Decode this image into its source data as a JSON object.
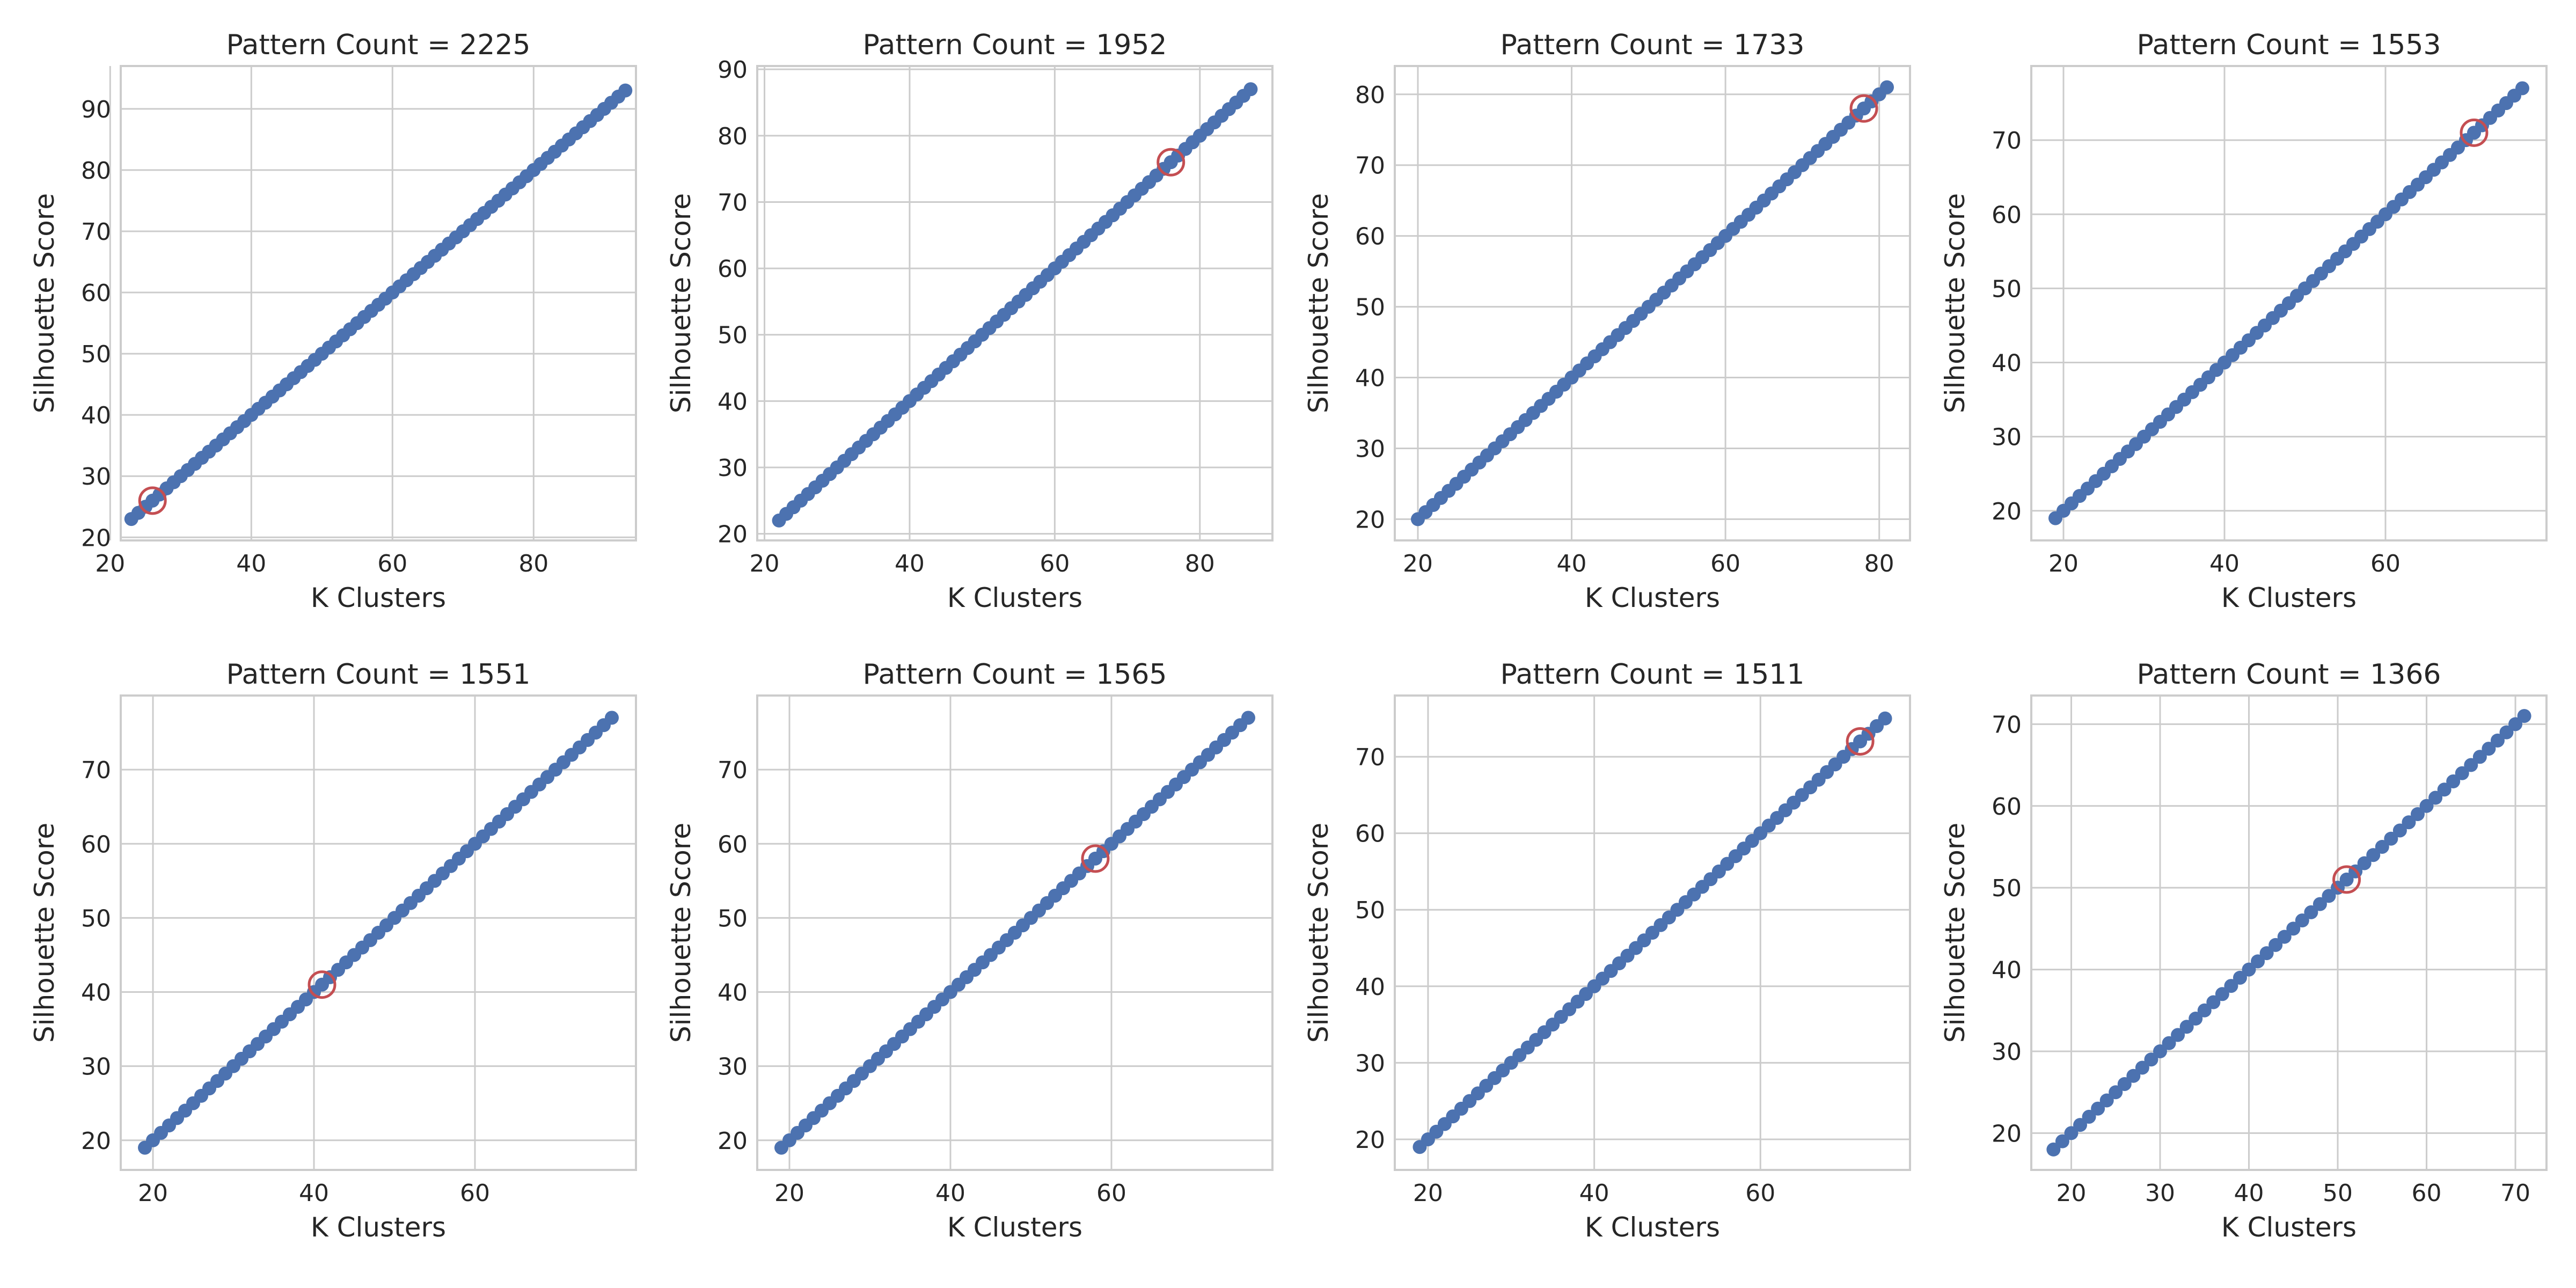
{
  "colors": {
    "series": "#4c72b0",
    "highlight": "#c44e52",
    "grid": "#cccccc",
    "text": "#262626"
  },
  "chart_data": [
    {
      "type": "scatter",
      "title": "Pattern Count = 2225",
      "xlabel": "K Clusters",
      "ylabel": "Silhouette Score",
      "x_start": 23,
      "x_end": 93,
      "xlim": [
        21.5,
        94.5
      ],
      "ylim": [
        19.5,
        97
      ],
      "grid": true,
      "xticks": [
        20,
        40,
        60,
        80
      ],
      "yticks": [
        20,
        30,
        40,
        50,
        60,
        70,
        80,
        90
      ],
      "highlight": {
        "x": 26,
        "y": 26
      }
    },
    {
      "type": "scatter",
      "title": "Pattern Count = 1952",
      "xlabel": "K Clusters",
      "ylabel": "Silhouette Score",
      "x_start": 22,
      "x_end": 87,
      "xlim": [
        19,
        90
      ],
      "ylim": [
        19,
        90.5
      ],
      "grid": true,
      "xticks": [
        20,
        40,
        60,
        80
      ],
      "yticks": [
        20,
        30,
        40,
        50,
        60,
        70,
        80,
        90
      ],
      "highlight": {
        "x": 76,
        "y": 76
      }
    },
    {
      "type": "scatter",
      "title": "Pattern Count = 1733",
      "xlabel": "K Clusters",
      "ylabel": "Silhouette Score",
      "x_start": 20,
      "x_end": 81,
      "xlim": [
        17,
        84
      ],
      "ylim": [
        17,
        84
      ],
      "grid": true,
      "xticks": [
        20,
        40,
        60,
        80
      ],
      "yticks": [
        20,
        30,
        40,
        50,
        60,
        70,
        80
      ],
      "highlight": {
        "x": 78,
        "y": 78
      }
    },
    {
      "type": "scatter",
      "title": "Pattern Count = 1553",
      "xlabel": "K Clusters",
      "ylabel": "Silhouette Score",
      "x_start": 19,
      "x_end": 77,
      "xlim": [
        16,
        80
      ],
      "ylim": [
        16,
        80
      ],
      "grid": true,
      "xticks": [
        20,
        40,
        60
      ],
      "yticks": [
        20,
        30,
        40,
        50,
        60,
        70
      ],
      "highlight": {
        "x": 71,
        "y": 71
      }
    },
    {
      "type": "scatter",
      "title": "Pattern Count = 1551",
      "xlabel": "K Clusters",
      "ylabel": "Silhouette Score",
      "x_start": 19,
      "x_end": 77,
      "xlim": [
        16,
        80
      ],
      "ylim": [
        16,
        80
      ],
      "grid": true,
      "xticks": [
        20,
        40,
        60
      ],
      "yticks": [
        20,
        30,
        40,
        50,
        60,
        70
      ],
      "highlight": {
        "x": 41,
        "y": 41
      }
    },
    {
      "type": "scatter",
      "title": "Pattern Count = 1565",
      "xlabel": "K Clusters",
      "ylabel": "Silhouette Score",
      "x_start": 19,
      "x_end": 77,
      "xlim": [
        16,
        80
      ],
      "ylim": [
        16,
        80
      ],
      "grid": true,
      "xticks": [
        20,
        40,
        60
      ],
      "yticks": [
        20,
        30,
        40,
        50,
        60,
        70
      ],
      "highlight": {
        "x": 58,
        "y": 58
      }
    },
    {
      "type": "scatter",
      "title": "Pattern Count = 1511",
      "xlabel": "K Clusters",
      "ylabel": "Silhouette Score",
      "x_start": 19,
      "x_end": 75,
      "xlim": [
        16,
        78
      ],
      "ylim": [
        16,
        78
      ],
      "grid": true,
      "xticks": [
        20,
        40,
        60
      ],
      "yticks": [
        20,
        30,
        40,
        50,
        60,
        70
      ],
      "highlight": {
        "x": 72,
        "y": 72
      }
    },
    {
      "type": "scatter",
      "title": "Pattern Count = 1366",
      "xlabel": "K Clusters",
      "ylabel": "Silhouette Score",
      "x_start": 18,
      "x_end": 71,
      "xlim": [
        15.5,
        73.5
      ],
      "ylim": [
        15.5,
        73.5
      ],
      "grid": true,
      "xticks": [
        20,
        30,
        40,
        50,
        60,
        70
      ],
      "yticks": [
        20,
        30,
        40,
        50,
        60,
        70
      ],
      "highlight": {
        "x": 51,
        "y": 51
      }
    }
  ]
}
